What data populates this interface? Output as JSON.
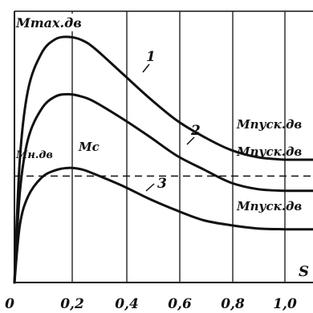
{
  "chart_data": {
    "type": "line",
    "ylabel": "Mmax.дв",
    "xlabel": "S",
    "xlim": [
      0,
      1.0
    ],
    "x_ticks": [
      "0",
      "0,2",
      "0,4",
      "0,6",
      "0,8",
      "1,0"
    ],
    "grid": true,
    "colors": {
      "ink": "#111111",
      "grid": "#222222",
      "background": "#ffffff"
    },
    "series": [
      {
        "name": "1",
        "end_label": "Mпуск.дв",
        "x": [
          0,
          0.02,
          0.05,
          0.1,
          0.15,
          0.2,
          0.25,
          0.3,
          0.4,
          0.5,
          0.6,
          0.7,
          0.8,
          0.9,
          1.0
        ],
        "y": [
          0,
          1.5,
          2.35,
          2.8,
          2.97,
          3.0,
          2.96,
          2.85,
          2.55,
          2.25,
          1.98,
          1.78,
          1.62,
          1.53,
          1.5
        ]
      },
      {
        "name": "2",
        "end_label": "Mпуск.дв",
        "x": [
          0,
          0.02,
          0.05,
          0.1,
          0.15,
          0.2,
          0.25,
          0.3,
          0.4,
          0.5,
          0.6,
          0.7,
          0.8,
          0.9,
          1.0
        ],
        "y": [
          0,
          1.1,
          1.75,
          2.12,
          2.27,
          2.3,
          2.27,
          2.2,
          2.0,
          1.78,
          1.55,
          1.38,
          1.22,
          1.14,
          1.12
        ]
      },
      {
        "name": "3",
        "end_label": "Mпуск.дв",
        "x": [
          0,
          0.02,
          0.05,
          0.1,
          0.15,
          0.2,
          0.25,
          0.3,
          0.4,
          0.5,
          0.6,
          0.7,
          0.8,
          0.9,
          1.0
        ],
        "y": [
          0,
          0.7,
          1.05,
          1.28,
          1.37,
          1.4,
          1.38,
          1.32,
          1.18,
          1.02,
          0.88,
          0.76,
          0.7,
          0.66,
          0.65
        ]
      }
    ],
    "reference_line": {
      "name": "Mc",
      "left_label": "Mн.дв",
      "y": 1.3,
      "style": "dashed"
    }
  }
}
